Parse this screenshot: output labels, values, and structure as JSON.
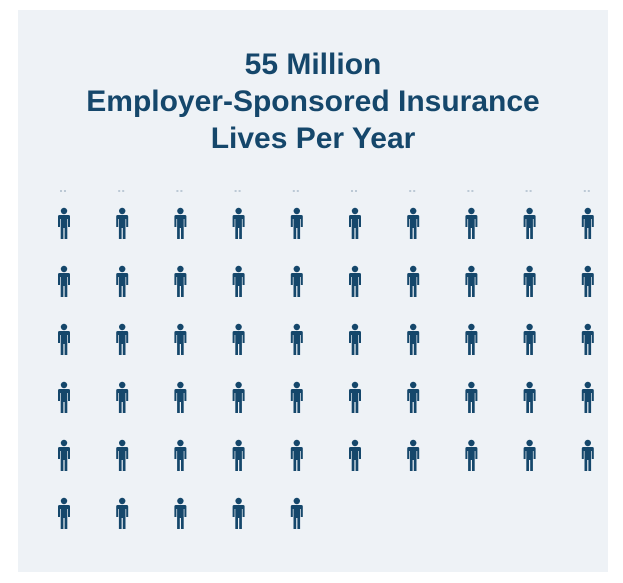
{
  "title": {
    "line1": "55 Million",
    "line2": "Employer-Sponsored Insurance",
    "line3": "Lives Per Year"
  },
  "colors": {
    "background": "#eef2f6",
    "icon": "#15476b",
    "title": "#15476b"
  },
  "icon_name": "person-icon",
  "chart_data": {
    "type": "pictograph",
    "total_value": 55,
    "unit_per_icon": 1,
    "icon_count": 55,
    "icons_per_row": 10,
    "title": "55 Million Employer-Sponsored Insurance Lives Per Year"
  }
}
